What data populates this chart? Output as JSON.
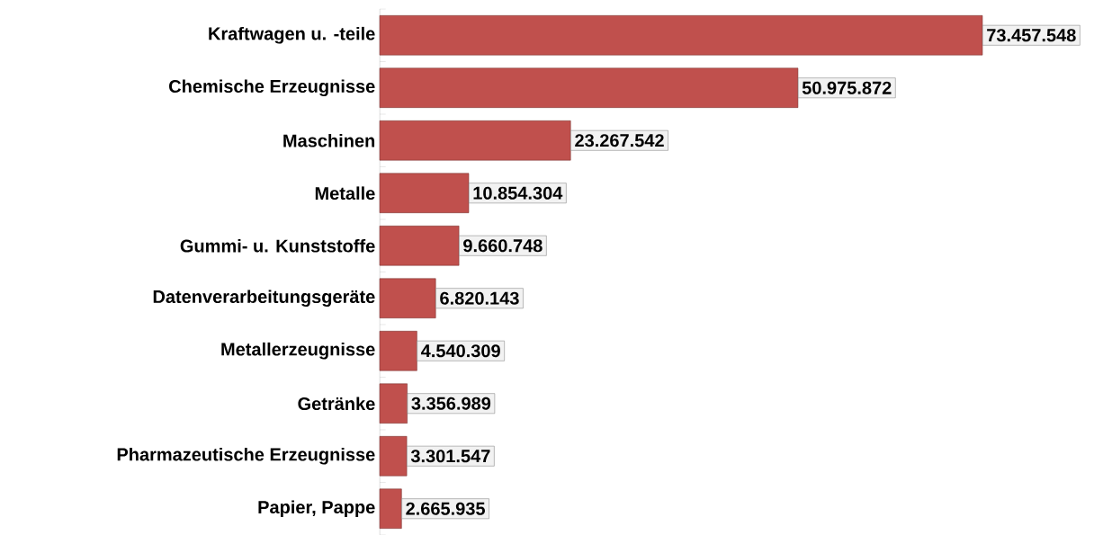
{
  "chart_data": {
    "type": "bar",
    "orientation": "horizontal",
    "color": "#c0504d",
    "categories": [
      "Kraftwagen u. -teile",
      "Chemische Erzeugnisse",
      "Maschinen",
      "Metalle",
      "Gummi- u. Kunststoffe",
      "Datenverarbeitungsgeräte",
      "Metallerzeugnisse",
      "Getränke",
      "Pharmazeutische Erzeugnisse",
      "Papier, Pappe"
    ],
    "values": [
      73457548,
      50975872,
      23267542,
      10854304,
      9660748,
      6820143,
      4540309,
      3356989,
      3301547,
      2665935
    ],
    "value_labels": [
      "73.457.548",
      "50.975.872",
      "23.267.542",
      "10.854.304",
      "9.660.748",
      "6.820.143",
      "4.540.309",
      "3.356.989",
      "3.301.547",
      "2.665.935"
    ]
  }
}
